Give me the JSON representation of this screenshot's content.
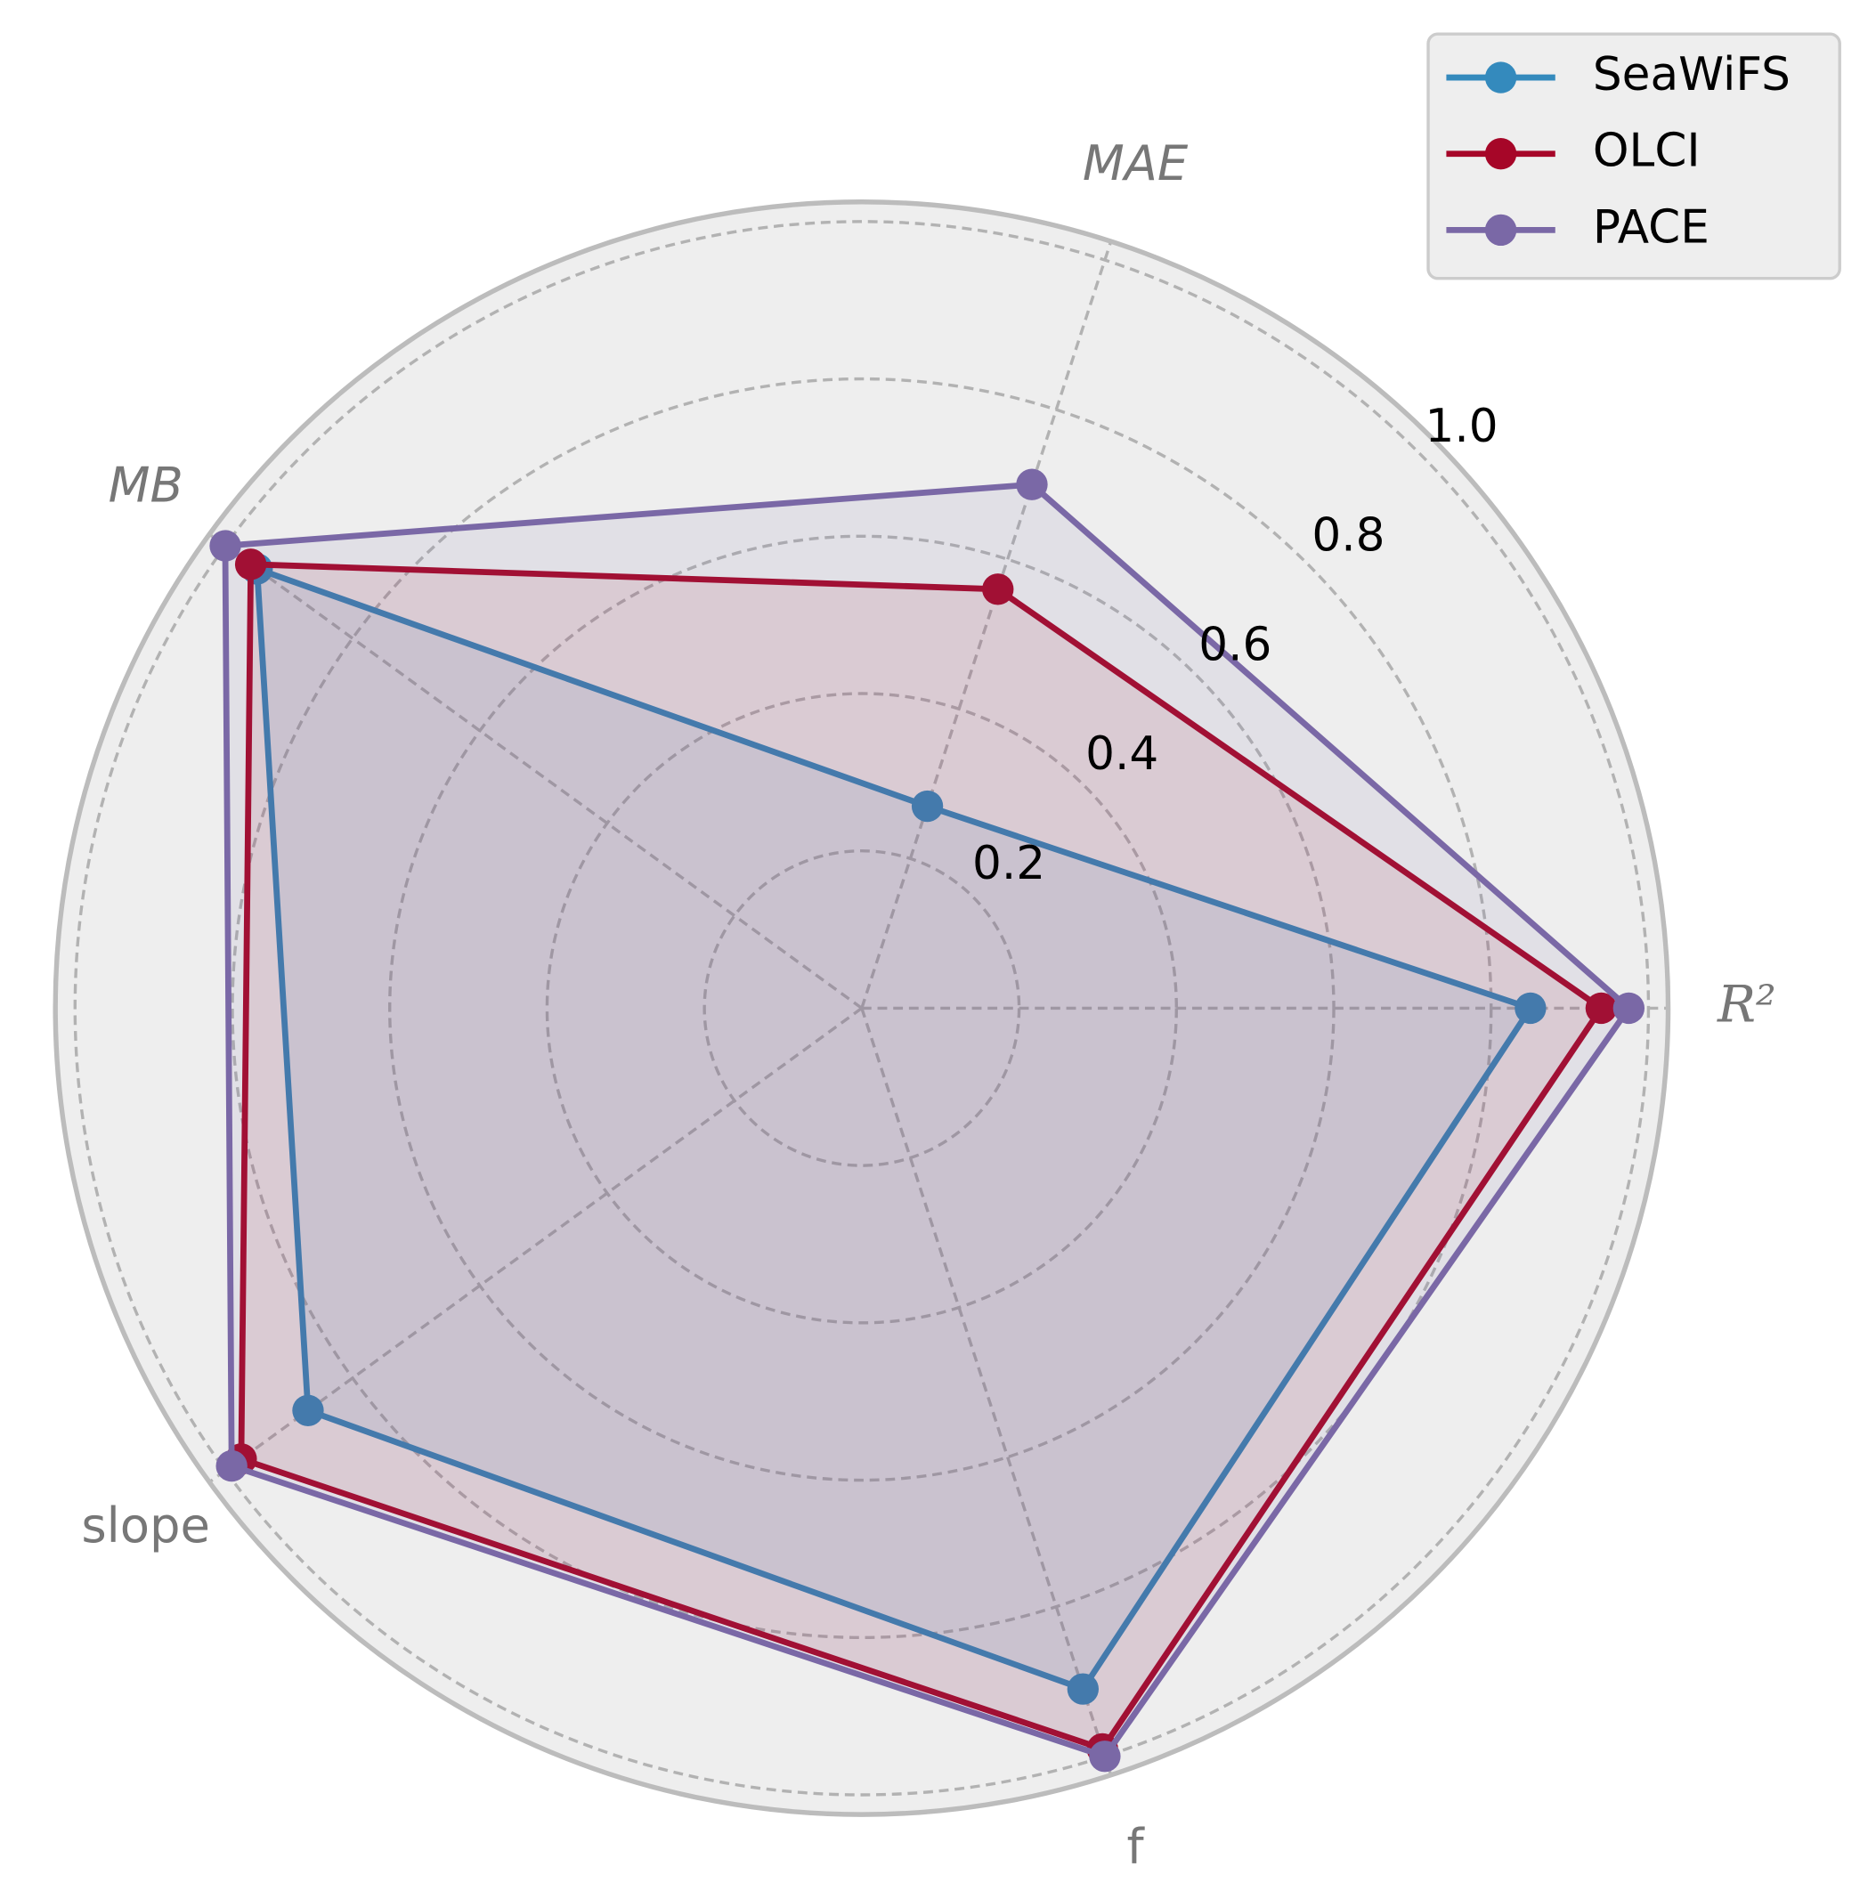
{
  "chart_data": {
    "type": "radar",
    "categories": [
      "R²",
      "MAE",
      "MB",
      "slope",
      "f"
    ],
    "category_italic": [
      true,
      true,
      true,
      false,
      false
    ],
    "series": [
      {
        "name": "SeaWiFS",
        "color": "#348abd",
        "values": [
          0.85,
          0.27,
          0.95,
          0.87,
          0.91
        ]
      },
      {
        "name": "OLCI",
        "color": "#a60628",
        "values": [
          0.94,
          0.56,
          0.96,
          0.975,
          0.99
        ]
      },
      {
        "name": "PACE",
        "color": "#7a68a6",
        "values": [
          0.975,
          0.7,
          1.0,
          0.99,
          1.0
        ]
      }
    ],
    "ylim": [
      0,
      1.025
    ],
    "yticks": [
      0.2,
      0.4,
      0.6,
      0.8,
      {
        "value": 1,
        "label": "1.0"
      }
    ],
    "grid": true,
    "legend": "upper right"
  }
}
